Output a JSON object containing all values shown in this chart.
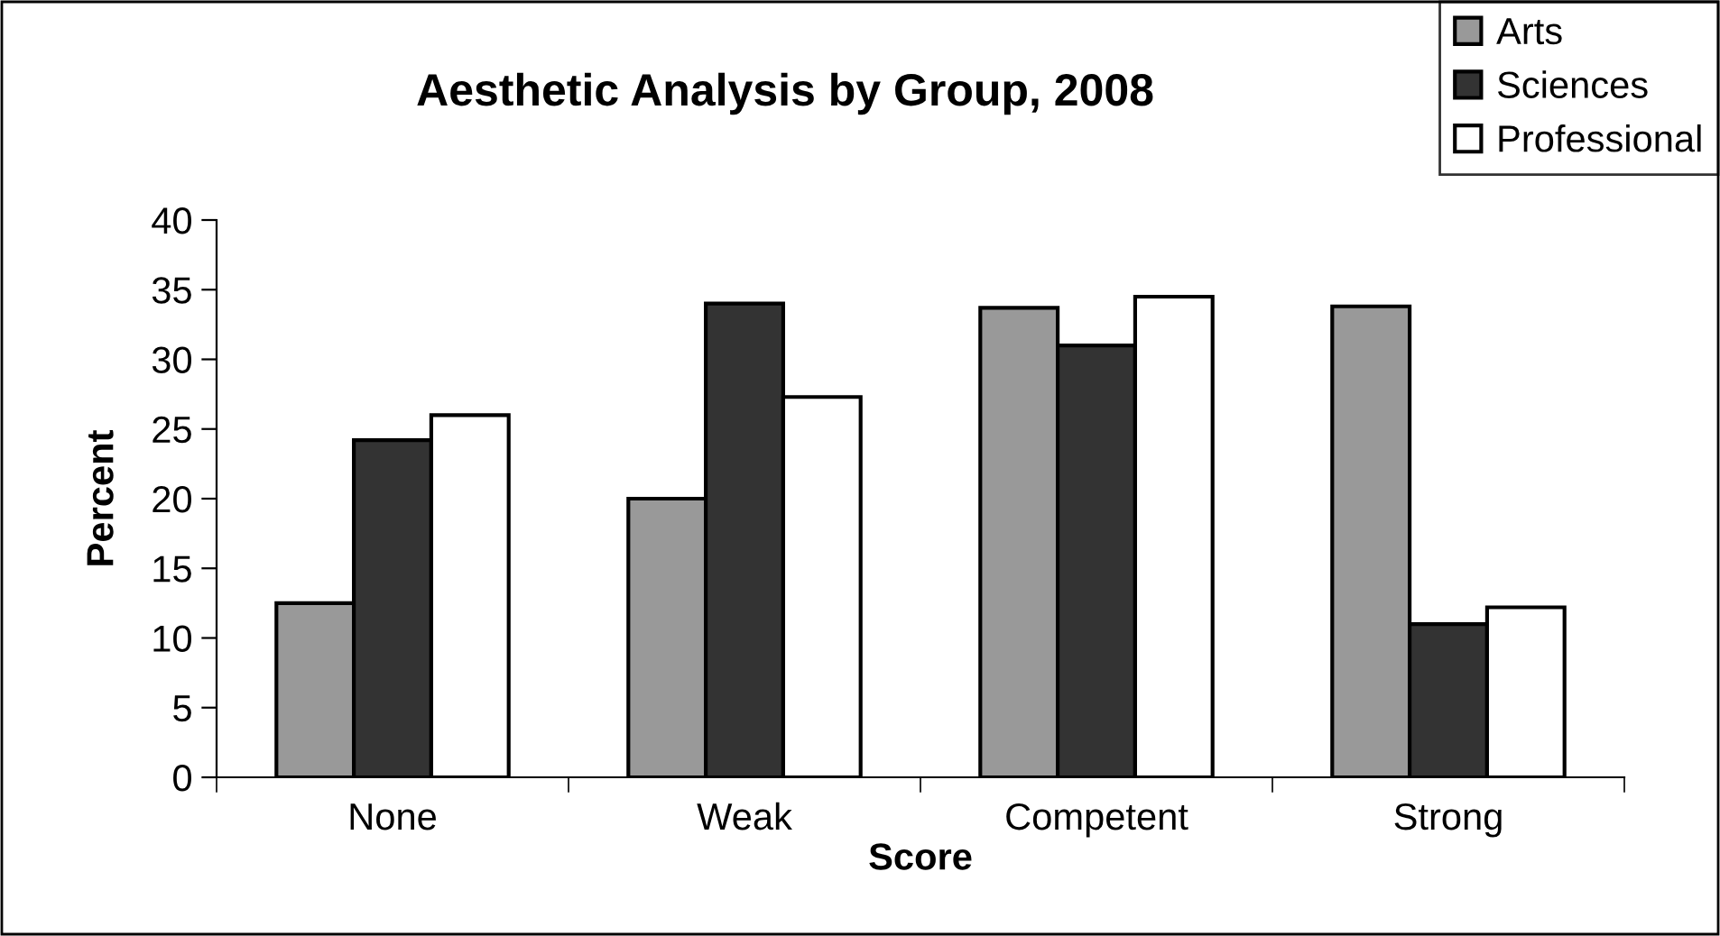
{
  "chart_data": {
    "type": "bar",
    "title": "Aesthetic Analysis by Group, 2008",
    "xlabel": "Score",
    "ylabel": "Percent",
    "categories": [
      "None",
      "Weak",
      "Competent",
      "Strong"
    ],
    "series": [
      {
        "name": "Arts",
        "color": "#999999",
        "values": [
          12.5,
          20,
          33.7,
          33.8
        ]
      },
      {
        "name": "Sciences",
        "color": "#333333",
        "values": [
          24.2,
          34,
          31,
          11
        ]
      },
      {
        "name": "Professional",
        "color": "#ffffff",
        "values": [
          26,
          27.3,
          34.5,
          12.2
        ]
      }
    ],
    "ylim": [
      0,
      40
    ],
    "yticks": [
      0,
      5,
      10,
      15,
      20,
      25,
      30,
      35,
      40
    ],
    "grid": false,
    "legend": "top right"
  }
}
